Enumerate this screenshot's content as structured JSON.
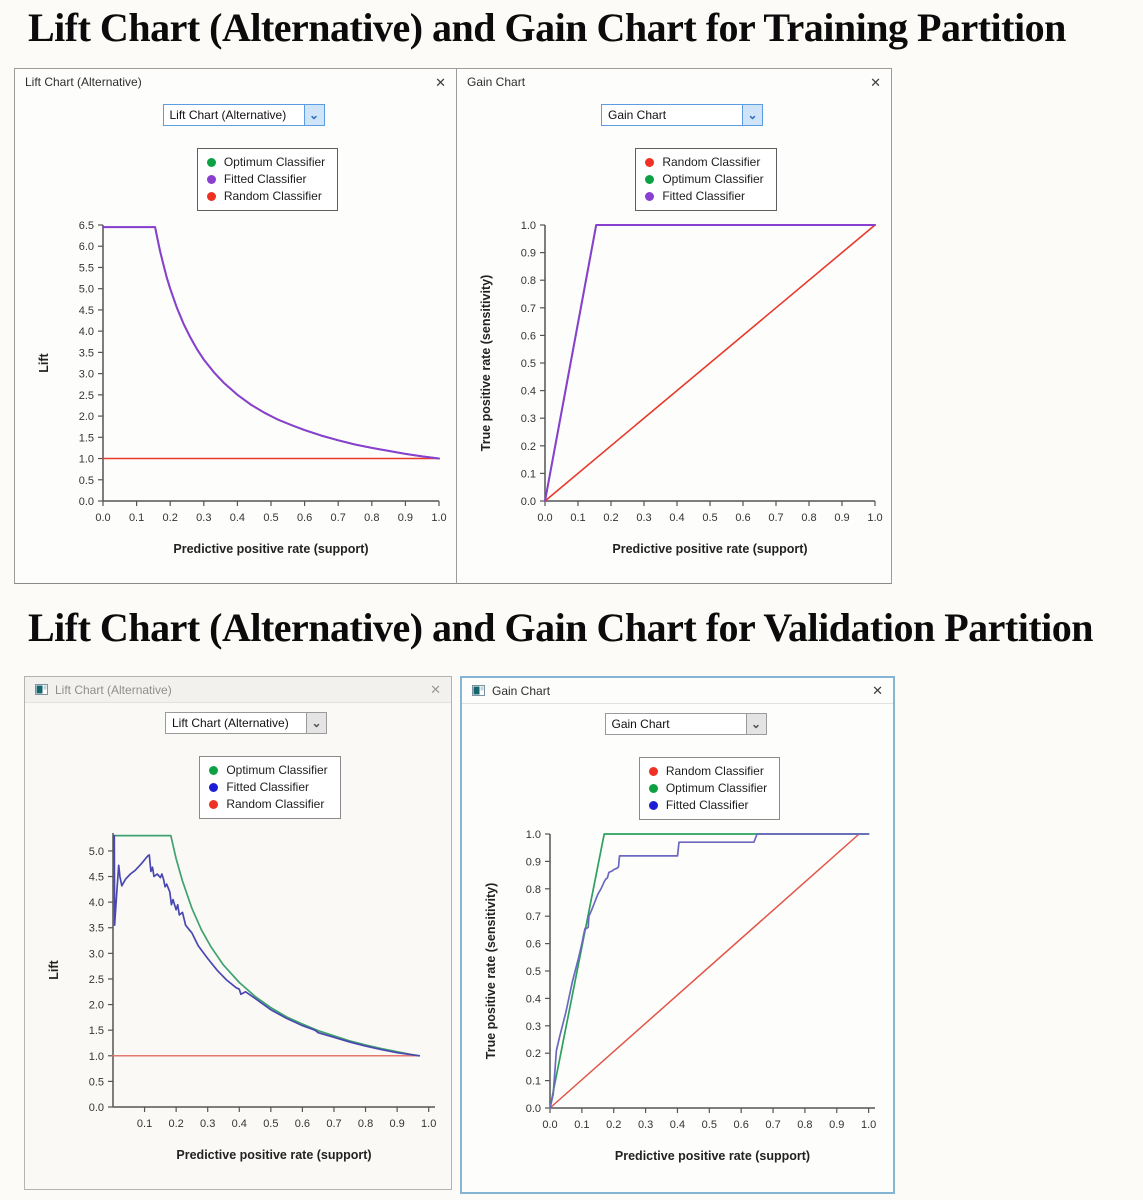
{
  "page": {
    "heading_training": "Lift Chart (Alternative) and Gain Chart for Training Partition",
    "heading_validation": "Lift Chart (Alternative) and Gain Chart for Validation Partition"
  },
  "windows": [
    {
      "title": "Lift Chart (Alternative)",
      "close_label": "✕",
      "dropdown_value": "Lift Chart (Alternative)",
      "dropdown_chevron": "⌄",
      "legend": [
        {
          "label": "Optimum Classifier",
          "color": "#0da144"
        },
        {
          "label": "Fitted Classifier",
          "color": "#8b3fd1"
        },
        {
          "label": "Random Classifier",
          "color": "#f03022"
        }
      ]
    },
    {
      "title": "Gain Chart",
      "close_label": "✕",
      "dropdown_value": "Gain Chart",
      "dropdown_chevron": "⌄",
      "legend": [
        {
          "label": "Random Classifier",
          "color": "#f03022"
        },
        {
          "label": "Optimum Classifier",
          "color": "#0da144"
        },
        {
          "label": "Fitted Classifier",
          "color": "#8b3fd1"
        }
      ]
    },
    {
      "title": "Lift Chart (Alternative)",
      "close_label": "✕",
      "dropdown_value": "Lift Chart (Alternative)",
      "dropdown_chevron": "⌄",
      "legend": [
        {
          "label": "Optimum Classifier",
          "color": "#0da144"
        },
        {
          "label": "Fitted Classifier",
          "color": "#1d1dd6"
        },
        {
          "label": "Random Classifier",
          "color": "#f03022"
        }
      ]
    },
    {
      "title": "Gain Chart",
      "close_label": "✕",
      "dropdown_value": "Gain Chart",
      "dropdown_chevron": "⌄",
      "legend": [
        {
          "label": "Random Classifier",
          "color": "#f03022"
        },
        {
          "label": "Optimum Classifier",
          "color": "#0da144"
        },
        {
          "label": "Fitted Classifier",
          "color": "#1d1dd6"
        }
      ]
    }
  ],
  "chart_data": [
    {
      "type": "line",
      "title": "Lift Chart (Alternative) - Training Partition",
      "xlabel": "Predictive positive rate (support)",
      "ylabel": "Lift",
      "xlim": [
        0,
        1.0
      ],
      "ylim": [
        0,
        6.5
      ],
      "xticks": [
        0.0,
        0.1,
        0.2,
        0.3,
        0.4,
        0.5,
        0.6,
        0.7,
        0.8,
        0.9,
        1.0
      ],
      "yticks": [
        0.0,
        0.5,
        1.0,
        1.5,
        2.0,
        2.5,
        3.0,
        3.5,
        4.0,
        4.5,
        5.0,
        5.5,
        6.0,
        6.5
      ],
      "grid": false,
      "series": [
        {
          "name": "Random Classifier",
          "color": "#e8392b",
          "width": 1.6,
          "points": [
            [
              0,
              1
            ],
            [
              1,
              1
            ]
          ]
        },
        {
          "name": "Optimum Classifier",
          "color": "#1f9e4b",
          "width": 1.8,
          "points": [
            [
              0,
              6.45
            ],
            [
              0.155,
              6.45
            ],
            [
              0.16,
              6.25
            ],
            [
              0.17,
              5.88
            ],
            [
              0.18,
              5.56
            ],
            [
              0.19,
              5.26
            ],
            [
              0.2,
              5.0
            ],
            [
              0.22,
              4.55
            ],
            [
              0.24,
              4.17
            ],
            [
              0.26,
              3.85
            ],
            [
              0.28,
              3.57
            ],
            [
              0.3,
              3.33
            ],
            [
              0.33,
              3.03
            ],
            [
              0.36,
              2.78
            ],
            [
              0.4,
              2.5
            ],
            [
              0.44,
              2.27
            ],
            [
              0.48,
              2.08
            ],
            [
              0.52,
              1.92
            ],
            [
              0.56,
              1.79
            ],
            [
              0.6,
              1.67
            ],
            [
              0.65,
              1.54
            ],
            [
              0.7,
              1.43
            ],
            [
              0.75,
              1.33
            ],
            [
              0.8,
              1.25
            ],
            [
              0.85,
              1.18
            ],
            [
              0.9,
              1.11
            ],
            [
              0.95,
              1.05
            ],
            [
              1,
              1
            ]
          ]
        },
        {
          "name": "Fitted Classifier",
          "color": "#8b3fd1",
          "width": 2.0,
          "points": [
            [
              0,
              6.45
            ],
            [
              0.155,
              6.45
            ],
            [
              0.16,
              6.25
            ],
            [
              0.17,
              5.88
            ],
            [
              0.18,
              5.56
            ],
            [
              0.19,
              5.26
            ],
            [
              0.2,
              5.0
            ],
            [
              0.22,
              4.55
            ],
            [
              0.24,
              4.17
            ],
            [
              0.26,
              3.85
            ],
            [
              0.28,
              3.57
            ],
            [
              0.3,
              3.33
            ],
            [
              0.33,
              3.03
            ],
            [
              0.36,
              2.78
            ],
            [
              0.4,
              2.5
            ],
            [
              0.44,
              2.27
            ],
            [
              0.48,
              2.08
            ],
            [
              0.52,
              1.92
            ],
            [
              0.56,
              1.79
            ],
            [
              0.6,
              1.67
            ],
            [
              0.65,
              1.54
            ],
            [
              0.7,
              1.43
            ],
            [
              0.75,
              1.33
            ],
            [
              0.8,
              1.25
            ],
            [
              0.85,
              1.18
            ],
            [
              0.9,
              1.11
            ],
            [
              0.95,
              1.05
            ],
            [
              1,
              1
            ]
          ]
        }
      ]
    },
    {
      "type": "line",
      "title": "Gain Chart - Training Partition",
      "xlabel": "Predictive positive rate (support)",
      "ylabel": "True positive rate (sensitivity)",
      "xlim": [
        0,
        1.0
      ],
      "ylim": [
        0,
        1.0
      ],
      "xticks": [
        0.0,
        0.1,
        0.2,
        0.3,
        0.4,
        0.5,
        0.6,
        0.7,
        0.8,
        0.9,
        1.0
      ],
      "yticks": [
        0.0,
        0.1,
        0.2,
        0.3,
        0.4,
        0.5,
        0.6,
        0.7,
        0.8,
        0.9,
        1.0
      ],
      "grid": false,
      "series": [
        {
          "name": "Random Classifier",
          "color": "#e8392b",
          "width": 1.6,
          "points": [
            [
              0,
              0
            ],
            [
              1,
              1
            ]
          ]
        },
        {
          "name": "Optimum Classifier",
          "color": "#1f9e4b",
          "width": 1.8,
          "points": [
            [
              0,
              0
            ],
            [
              0.155,
              1
            ],
            [
              1,
              1
            ]
          ]
        },
        {
          "name": "Fitted Classifier",
          "color": "#8b3fd1",
          "width": 2.0,
          "points": [
            [
              0,
              0
            ],
            [
              0.155,
              1
            ],
            [
              1,
              1
            ]
          ]
        }
      ]
    },
    {
      "type": "line",
      "title": "Lift Chart (Alternative) - Validation Partition",
      "xlabel": "Predictive positive rate (support)",
      "ylabel": "Lift",
      "xlim": [
        0,
        1.02
      ],
      "ylim": [
        0,
        5.35
      ],
      "xticks": [
        0.1,
        0.2,
        0.3,
        0.4,
        0.5,
        0.6,
        0.7,
        0.8,
        0.9,
        1.0
      ],
      "yticks": [
        0.0,
        0.5,
        1.0,
        1.5,
        2.0,
        2.5,
        3.0,
        3.5,
        4.0,
        4.5,
        5.0
      ],
      "grid": false,
      "series": [
        {
          "name": "Random Classifier",
          "color": "#e3786e",
          "width": 1.5,
          "points": [
            [
              0,
              1
            ],
            [
              0.97,
              1
            ]
          ]
        },
        {
          "name": "Optimum Classifier",
          "color": "#3fa26e",
          "width": 1.7,
          "points": [
            [
              0.004,
              5.3
            ],
            [
              0.183,
              5.3
            ],
            [
              0.2,
              4.85
            ],
            [
              0.22,
              4.41
            ],
            [
              0.25,
              3.88
            ],
            [
              0.28,
              3.46
            ],
            [
              0.31,
              3.13
            ],
            [
              0.35,
              2.77
            ],
            [
              0.4,
              2.43
            ],
            [
              0.45,
              2.16
            ],
            [
              0.5,
              1.94
            ],
            [
              0.55,
              1.76
            ],
            [
              0.6,
              1.62
            ],
            [
              0.65,
              1.49
            ],
            [
              0.7,
              1.39
            ],
            [
              0.75,
              1.29
            ],
            [
              0.8,
              1.21
            ],
            [
              0.85,
              1.14
            ],
            [
              0.9,
              1.08
            ],
            [
              0.94,
              1.03
            ],
            [
              0.97,
              1
            ]
          ]
        },
        {
          "name": "Fitted Classifier",
          "color": "#4a48b0",
          "width": 1.7,
          "points": [
            [
              0.004,
              5.3
            ],
            [
              0.005,
              3.55
            ],
            [
              0.012,
              4.2
            ],
            [
              0.018,
              4.72
            ],
            [
              0.022,
              4.5
            ],
            [
              0.028,
              4.32
            ],
            [
              0.04,
              4.45
            ],
            [
              0.055,
              4.55
            ],
            [
              0.07,
              4.62
            ],
            [
              0.09,
              4.75
            ],
            [
              0.11,
              4.9
            ],
            [
              0.115,
              4.92
            ],
            [
              0.12,
              4.6
            ],
            [
              0.125,
              4.68
            ],
            [
              0.13,
              4.5
            ],
            [
              0.14,
              4.55
            ],
            [
              0.15,
              4.48
            ],
            [
              0.155,
              4.55
            ],
            [
              0.16,
              4.45
            ],
            [
              0.165,
              4.3
            ],
            [
              0.17,
              4.35
            ],
            [
              0.18,
              4.2
            ],
            [
              0.185,
              3.95
            ],
            [
              0.19,
              4.05
            ],
            [
              0.2,
              3.85
            ],
            [
              0.205,
              3.95
            ],
            [
              0.21,
              3.75
            ],
            [
              0.22,
              3.8
            ],
            [
              0.23,
              3.55
            ],
            [
              0.25,
              3.4
            ],
            [
              0.27,
              3.15
            ],
            [
              0.3,
              2.9
            ],
            [
              0.33,
              2.67
            ],
            [
              0.36,
              2.48
            ],
            [
              0.39,
              2.33
            ],
            [
              0.4,
              2.3
            ],
            [
              0.405,
              2.2
            ],
            [
              0.42,
              2.25
            ],
            [
              0.45,
              2.12
            ],
            [
              0.5,
              1.9
            ],
            [
              0.55,
              1.73
            ],
            [
              0.6,
              1.59
            ],
            [
              0.64,
              1.5
            ],
            [
              0.65,
              1.45
            ],
            [
              0.7,
              1.36
            ],
            [
              0.75,
              1.27
            ],
            [
              0.8,
              1.19
            ],
            [
              0.85,
              1.12
            ],
            [
              0.9,
              1.06
            ],
            [
              0.97,
              1
            ]
          ]
        }
      ]
    },
    {
      "type": "line",
      "title": "Gain Chart - Validation Partition",
      "xlabel": "Predictive positive rate (support)",
      "ylabel": "True positive rate (sensitivity)",
      "xlim": [
        0,
        1.02
      ],
      "ylim": [
        0,
        1.0
      ],
      "xticks": [
        0.0,
        0.1,
        0.2,
        0.3,
        0.4,
        0.5,
        0.6,
        0.7,
        0.8,
        0.9,
        1.0
      ],
      "yticks": [
        0.0,
        0.1,
        0.2,
        0.3,
        0.4,
        0.5,
        0.6,
        0.7,
        0.8,
        0.9,
        1.0
      ],
      "grid": false,
      "series": [
        {
          "name": "Random Classifier",
          "color": "#e25548",
          "width": 1.5,
          "points": [
            [
              0,
              0
            ],
            [
              0.97,
              1
            ]
          ]
        },
        {
          "name": "Optimum Classifier",
          "color": "#2ba05f",
          "width": 1.7,
          "points": [
            [
              0,
              0
            ],
            [
              0.17,
              1
            ],
            [
              1,
              1
            ]
          ]
        },
        {
          "name": "Fitted Classifier",
          "color": "#6b68bf",
          "width": 1.7,
          "points": [
            [
              0,
              0
            ],
            [
              0.01,
              0.05
            ],
            [
              0.02,
              0.21
            ],
            [
              0.03,
              0.26
            ],
            [
              0.05,
              0.35
            ],
            [
              0.07,
              0.46
            ],
            [
              0.09,
              0.55
            ],
            [
              0.1,
              0.6
            ],
            [
              0.105,
              0.63
            ],
            [
              0.11,
              0.655
            ],
            [
              0.115,
              0.655
            ],
            [
              0.12,
              0.66
            ],
            [
              0.122,
              0.7
            ],
            [
              0.13,
              0.72
            ],
            [
              0.14,
              0.75
            ],
            [
              0.15,
              0.78
            ],
            [
              0.16,
              0.8
            ],
            [
              0.168,
              0.82
            ],
            [
              0.172,
              0.83
            ],
            [
              0.175,
              0.835
            ],
            [
              0.18,
              0.84
            ],
            [
              0.185,
              0.86
            ],
            [
              0.195,
              0.865
            ],
            [
              0.2,
              0.87
            ],
            [
              0.21,
              0.875
            ],
            [
              0.215,
              0.88
            ],
            [
              0.218,
              0.92
            ],
            [
              0.4,
              0.92
            ],
            [
              0.405,
              0.97
            ],
            [
              0.64,
              0.97
            ],
            [
              0.65,
              1
            ],
            [
              1,
              1
            ]
          ]
        }
      ]
    }
  ]
}
